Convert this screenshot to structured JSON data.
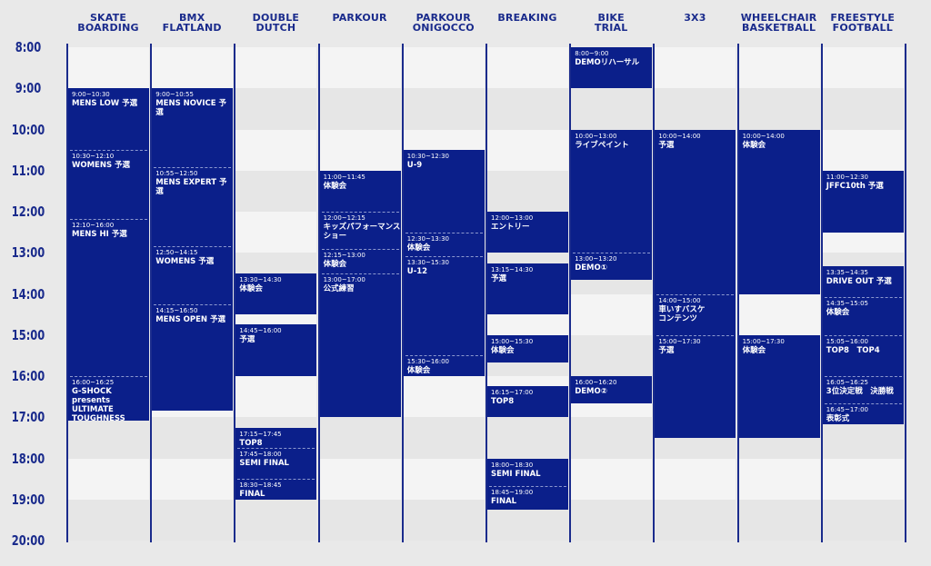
{
  "columns": [
    {
      "id": "skate",
      "label": "SKATE\nBOARDING"
    },
    {
      "id": "bmx",
      "label": "BMX\nFLATLAND"
    },
    {
      "id": "dd",
      "label": "DOUBLE\nDUTCH"
    },
    {
      "id": "parkour",
      "label": "PARKOUR"
    },
    {
      "id": "oni",
      "label": "PARKOUR\nONIGOCCO"
    },
    {
      "id": "breaking",
      "label": "BREAKING"
    },
    {
      "id": "bike",
      "label": "BIKE\nTRIAL"
    },
    {
      "id": "3x3",
      "label": "3X3"
    },
    {
      "id": "wheel",
      "label": "WHEELCHAIR\nBASKETBALL"
    },
    {
      "id": "ff",
      "label": "FREESTYLE\nFOOTBALL"
    }
  ],
  "hours": [
    "8:00",
    "9:00",
    "10:00",
    "11:00",
    "12:00",
    "13:00",
    "14:00",
    "15:00",
    "16:00",
    "17:00",
    "18:00",
    "19:00",
    "20:00"
  ],
  "blocks": [
    {
      "col": 0,
      "start": "9:00",
      "end": "17:05"
    },
    {
      "col": 1,
      "start": "9:00",
      "end": "16:50"
    },
    {
      "col": 2,
      "start": "13:30",
      "end": "14:30"
    },
    {
      "col": 2,
      "start": "14:45",
      "end": "16:00"
    },
    {
      "col": 2,
      "start": "17:15",
      "end": "19:00"
    },
    {
      "col": 3,
      "start": "11:00",
      "end": "17:00"
    },
    {
      "col": 4,
      "start": "10:30",
      "end": "16:00"
    },
    {
      "col": 5,
      "start": "12:00",
      "end": "13:00"
    },
    {
      "col": 5,
      "start": "13:15",
      "end": "14:30"
    },
    {
      "col": 5,
      "start": "15:00",
      "end": "15:40"
    },
    {
      "col": 5,
      "start": "16:15",
      "end": "17:00"
    },
    {
      "col": 5,
      "start": "18:00",
      "end": "19:15"
    },
    {
      "col": 6,
      "start": "8:00",
      "end": "9:00"
    },
    {
      "col": 6,
      "start": "10:00",
      "end": "13:40"
    },
    {
      "col": 6,
      "start": "16:00",
      "end": "16:40"
    },
    {
      "col": 7,
      "start": "10:00",
      "end": "17:30"
    },
    {
      "col": 8,
      "start": "10:00",
      "end": "14:00"
    },
    {
      "col": 8,
      "start": "15:00",
      "end": "17:30"
    },
    {
      "col": 9,
      "start": "11:00",
      "end": "12:30"
    },
    {
      "col": 9,
      "start": "13:20",
      "end": "17:10"
    }
  ],
  "events": [
    {
      "col": 0,
      "start": "9:00",
      "end": "10:30",
      "time": "9:00~10:30",
      "name": "MENS LOW 予選"
    },
    {
      "col": 0,
      "start": "10:30",
      "end": "12:10",
      "time": "10:30~12:10",
      "name": "WOMENS  予選"
    },
    {
      "col": 0,
      "start": "12:10",
      "end": "16:00",
      "time": "12:10~16:00",
      "name": "MENS HI 予選"
    },
    {
      "col": 0,
      "start": "16:00",
      "end": "17:05",
      "time": "16:00~16:25",
      "name": "G-SHOCK presents\nULTIMATE\nTOUGHNESS"
    },
    {
      "col": 1,
      "start": "9:00",
      "end": "10:55",
      "time": "9:00~10:55",
      "name": "MENS NOVICE 予選"
    },
    {
      "col": 1,
      "start": "10:55",
      "end": "12:50",
      "time": "10:55~12:50",
      "name": "MENS EXPERT 予選"
    },
    {
      "col": 1,
      "start": "12:50",
      "end": "14:15",
      "time": "12:50~14:15",
      "name": "WOMENS 予選"
    },
    {
      "col": 1,
      "start": "14:15",
      "end": "16:50",
      "time": "14:15~16:50",
      "name": "MENS OPEN 予選"
    },
    {
      "col": 2,
      "start": "13:30",
      "end": "14:30",
      "time": "13:30~14:30",
      "name": "体験会"
    },
    {
      "col": 2,
      "start": "14:45",
      "end": "16:00",
      "time": "14:45~16:00",
      "name": "予選"
    },
    {
      "col": 2,
      "start": "17:15",
      "end": "17:45",
      "time": "17:15~17:45",
      "name": "TOP8"
    },
    {
      "col": 2,
      "start": "17:45",
      "end": "18:30",
      "time": "17:45~18:00",
      "name": "SEMI FINAL"
    },
    {
      "col": 2,
      "start": "18:30",
      "end": "19:00",
      "time": "18:30~18:45",
      "name": "FINAL"
    },
    {
      "col": 3,
      "start": "11:00",
      "end": "12:00",
      "time": "11:00~11:45",
      "name": "体験会"
    },
    {
      "col": 3,
      "start": "12:00",
      "end": "12:55",
      "time": "12:00~12:15",
      "name": "キッズパフォーマンス\nショー"
    },
    {
      "col": 3,
      "start": "12:55",
      "end": "13:30",
      "time": "12:15~13:00",
      "name": "体験会"
    },
    {
      "col": 3,
      "start": "13:30",
      "end": "17:00",
      "time": "13:00~17:00",
      "name": "公式練習"
    },
    {
      "col": 4,
      "start": "10:30",
      "end": "12:30",
      "time": "10:30~12:30",
      "name": "U-9"
    },
    {
      "col": 4,
      "start": "12:30",
      "end": "13:05",
      "time": "12:30~13:30",
      "name": "体験会"
    },
    {
      "col": 4,
      "start": "13:05",
      "end": "15:30",
      "time": "13:30~15:30",
      "name": "U-12"
    },
    {
      "col": 4,
      "start": "15:30",
      "end": "16:00",
      "time": "15:30~16:00",
      "name": "体験会"
    },
    {
      "col": 5,
      "start": "12:00",
      "end": "13:00",
      "time": "12:00~13:00",
      "name": "エントリー"
    },
    {
      "col": 5,
      "start": "13:15",
      "end": "14:30",
      "time": "13:15~14:30",
      "name": "予選"
    },
    {
      "col": 5,
      "start": "15:00",
      "end": "15:40",
      "time": "15:00~15:30",
      "name": "体験会"
    },
    {
      "col": 5,
      "start": "16:15",
      "end": "17:00",
      "time": "16:15~17:00",
      "name": "TOP8"
    },
    {
      "col": 5,
      "start": "18:00",
      "end": "18:40",
      "time": "18:00~18:30",
      "name": "SEMI FINAL"
    },
    {
      "col": 5,
      "start": "18:40",
      "end": "19:15",
      "time": "18:45~19:00",
      "name": "FINAL"
    },
    {
      "col": 6,
      "start": "8:00",
      "end": "9:00",
      "time": "8:00~9:00",
      "name": "DEMOリハーサル"
    },
    {
      "col": 6,
      "start": "10:00",
      "end": "13:00",
      "time": "10:00~13:00",
      "name": "ライブペイント"
    },
    {
      "col": 6,
      "start": "13:00",
      "end": "13:40",
      "time": "13:00~13:20",
      "name": "DEMO①"
    },
    {
      "col": 6,
      "start": "16:00",
      "end": "16:40",
      "time": "16:00~16:20",
      "name": "DEMO②"
    },
    {
      "col": 7,
      "start": "10:00",
      "end": "14:00",
      "time": "10:00~14:00",
      "name": "予選"
    },
    {
      "col": 7,
      "start": "14:00",
      "end": "15:00",
      "time": "14:00~15:00",
      "name": "車いすバスケ\nコンテンツ"
    },
    {
      "col": 7,
      "start": "15:00",
      "end": "17:30",
      "time": "15:00~17:30",
      "name": "予選"
    },
    {
      "col": 8,
      "start": "10:00",
      "end": "14:00",
      "time": "10:00~14:00",
      "name": "体験会"
    },
    {
      "col": 8,
      "start": "15:00",
      "end": "17:30",
      "time": "15:00~17:30",
      "name": "体験会"
    },
    {
      "col": 9,
      "start": "11:00",
      "end": "12:30",
      "time": "11:00~12:30",
      "name": "JFFC10th 予選"
    },
    {
      "col": 9,
      "start": "13:20",
      "end": "14:05",
      "time": "13:35~14:35",
      "name": "DRIVE OUT 予選"
    },
    {
      "col": 9,
      "start": "14:05",
      "end": "15:00",
      "time": "14:35~15:05",
      "name": "体験会"
    },
    {
      "col": 9,
      "start": "15:00",
      "end": "16:00",
      "time": "15:05~16:00",
      "name": "TOP8　TOP4"
    },
    {
      "col": 9,
      "start": "16:00",
      "end": "16:40",
      "time": "16:05~16:25",
      "name": "3位決定戦　決勝戦"
    },
    {
      "col": 9,
      "start": "16:40",
      "end": "17:10",
      "time": "16:45~17:00",
      "name": "表彰式"
    }
  ],
  "colors": {
    "navy": "#0b1f8a",
    "accent": "#1a2b8c",
    "light": "#f4f4f4",
    "mid": "#e6e6e6"
  }
}
